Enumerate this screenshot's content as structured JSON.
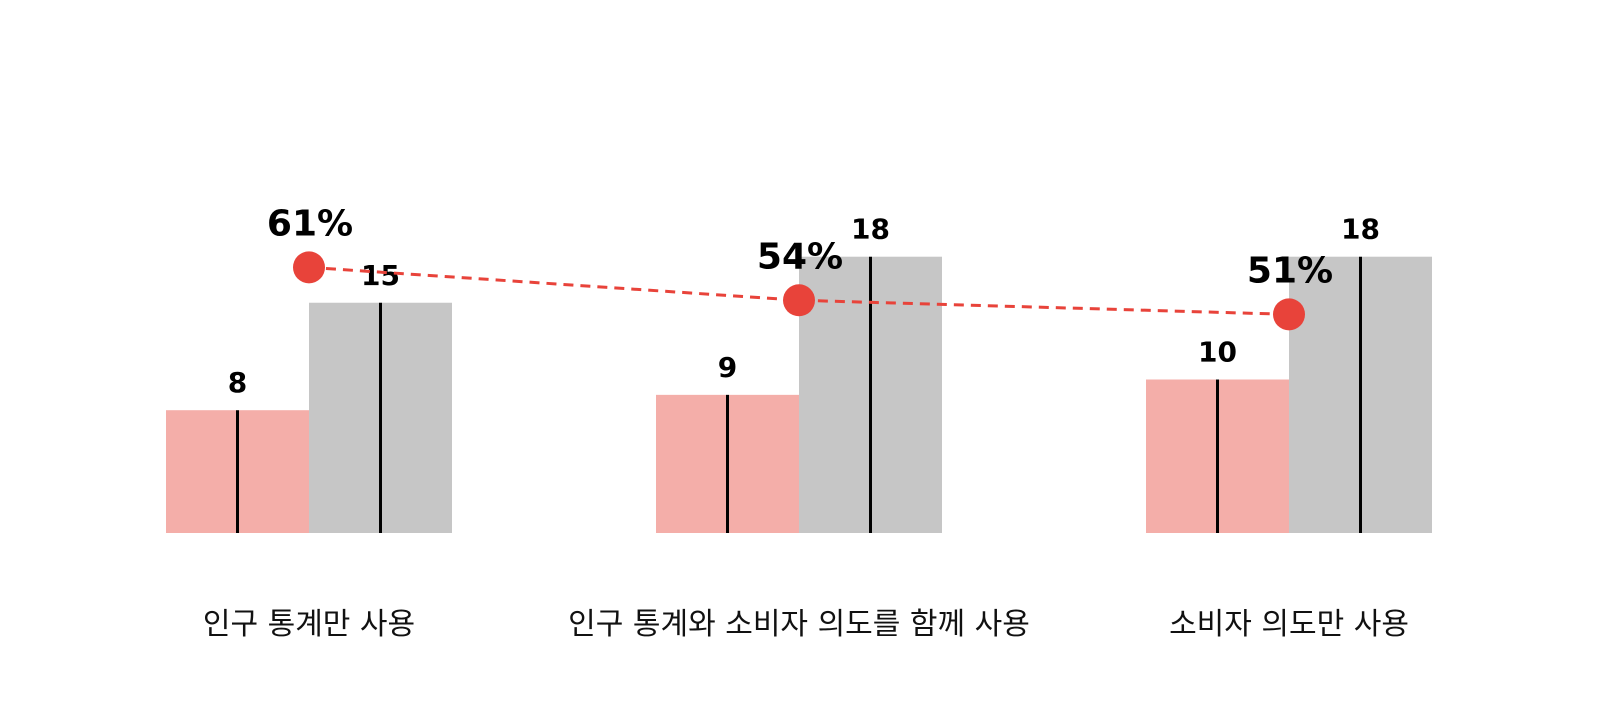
{
  "chart_data": {
    "type": "bar",
    "categories": [
      "인구 통계만 사용",
      "인구 통계와 소비자 의도를 함께 사용",
      "소비자 의도만 사용"
    ],
    "series": [
      {
        "values": [
          8,
          9,
          10
        ],
        "color": "#f4aea9"
      },
      {
        "values": [
          15,
          18,
          18
        ],
        "color": "#c6c6c6"
      }
    ],
    "line_series": {
      "values": [
        61,
        54,
        51
      ],
      "labels": [
        "61%",
        "54%",
        "51%"
      ],
      "color": "#e8433a",
      "style": "dashed"
    },
    "ylim": [
      0,
      18
    ],
    "grid": false,
    "legend": "none"
  }
}
